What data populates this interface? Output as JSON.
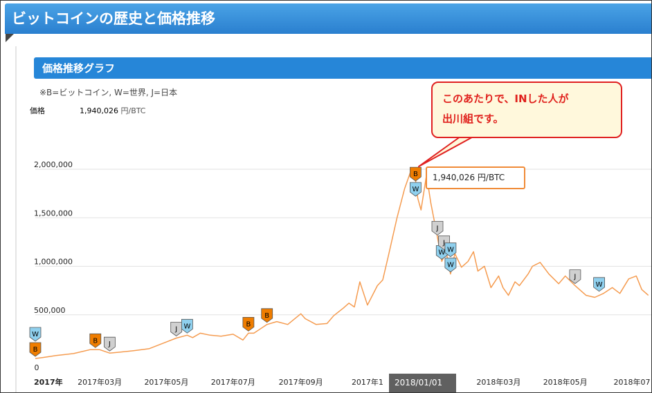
{
  "page": {
    "title": "ビットコインの歴史と価格推移",
    "section_title": "価格推移グラフ",
    "legend_note": "※B=ビットコイン, W=世界, J=日本",
    "price_label": "価格",
    "price_value": "1,940,026",
    "price_unit": "円/BTC"
  },
  "callout": {
    "line1": "このあたりで、INした人が",
    "line2": "出川組です。"
  },
  "tooltip": {
    "value": "1,940,026",
    "unit": "円/BTC"
  },
  "highlight": {
    "label": "2018/01/01"
  },
  "colors": {
    "banner": "#3a93dc",
    "section": "#2686d8",
    "line": "#f59b4f",
    "marker_b": "#ef7d00",
    "marker_w": "#8fd0ee",
    "marker_j": "#d0d0d0",
    "callout_border": "#e02020",
    "callout_fill": "#fff8dc",
    "callout_text": "#e0201c"
  },
  "chart_data": {
    "type": "line",
    "ylim": [
      0,
      2300000
    ],
    "yticks": [
      0,
      500000,
      1000000,
      1500000,
      2000000
    ],
    "ytick_labels": [
      "0",
      "500,000",
      "1,000,000",
      "1,500,000",
      "2,000,000"
    ],
    "xticks": [
      {
        "date": "2017-01-01",
        "label": "2017年"
      },
      {
        "date": "2017-03-01",
        "label": "2017年03月"
      },
      {
        "date": "2017-05-01",
        "label": "2017年05月"
      },
      {
        "date": "2017-07-01",
        "label": "2017年07月"
      },
      {
        "date": "2017-09-01",
        "label": "2017年09月"
      },
      {
        "date": "2017-11-01",
        "label": "2017年1"
      },
      {
        "date": "2018-03-01",
        "label": "2018年03月"
      },
      {
        "date": "2018-05-01",
        "label": "2018年05月"
      },
      {
        "date": "2018-07-01",
        "label": "2018年07"
      }
    ],
    "series": [
      {
        "x": [
          "2017-01-01",
          "2017-01-08",
          "2017-01-20",
          "2017-02-05",
          "2017-02-20",
          "2017-03-01",
          "2017-03-10",
          "2017-03-20",
          "2017-04-01",
          "2017-04-15",
          "2017-05-01",
          "2017-05-10",
          "2017-05-20",
          "2017-05-25",
          "2017-06-01",
          "2017-06-10",
          "2017-06-20",
          "2017-07-01",
          "2017-07-10",
          "2017-07-15",
          "2017-07-20",
          "2017-08-01",
          "2017-08-10",
          "2017-08-20",
          "2017-09-01",
          "2017-09-05",
          "2017-09-15",
          "2017-09-25",
          "2017-10-01",
          "2017-10-10",
          "2017-10-15",
          "2017-10-20",
          "2017-10-25",
          "2017-11-01",
          "2017-11-10",
          "2017-11-15",
          "2017-11-20",
          "2017-11-28",
          "2017-12-05",
          "2017-12-10",
          "2017-12-14",
          "2017-12-17",
          "2017-12-20",
          "2017-12-25",
          "2017-12-29",
          "2018-01-04",
          "2018-01-08",
          "2018-01-12",
          "2018-01-16",
          "2018-01-20",
          "2018-01-26",
          "2018-02-01",
          "2018-02-06",
          "2018-02-10",
          "2018-02-16",
          "2018-02-22",
          "2018-03-01",
          "2018-03-05",
          "2018-03-10",
          "2018-03-16",
          "2018-03-20",
          "2018-03-28",
          "2018-04-01",
          "2018-04-08",
          "2018-04-16",
          "2018-04-25",
          "2018-05-01",
          "2018-05-10",
          "2018-05-20",
          "2018-05-28",
          "2018-06-05",
          "2018-06-13",
          "2018-06-20",
          "2018-06-28",
          "2018-07-05",
          "2018-07-10",
          "2018-07-16"
        ],
        "values": [
          50000,
          60000,
          80000,
          100000,
          140000,
          140000,
          105000,
          115000,
          130000,
          150000,
          220000,
          260000,
          290000,
          265000,
          310000,
          290000,
          280000,
          300000,
          240000,
          310000,
          310000,
          400000,
          430000,
          400000,
          510000,
          460000,
          400000,
          410000,
          490000,
          570000,
          620000,
          580000,
          840000,
          600000,
          800000,
          860000,
          1100000,
          1500000,
          1800000,
          1960000,
          1980000,
          1700000,
          1580000,
          1940000,
          1650000,
          1300000,
          1050000,
          1150000,
          920000,
          1130000,
          990000,
          1050000,
          1150000,
          950000,
          1000000,
          780000,
          900000,
          780000,
          700000,
          840000,
          800000,
          920000,
          1000000,
          1040000,
          920000,
          820000,
          900000,
          800000,
          700000,
          680000,
          720000,
          780000,
          720000,
          870000,
          900000,
          760000,
          700000
        ]
      }
    ],
    "markers": [
      {
        "date": "2017-01-01",
        "label": "B",
        "kind": "B"
      },
      {
        "date": "2017-01-01",
        "label": "W",
        "kind": "W"
      },
      {
        "date": "2017-02-25",
        "label": "B",
        "kind": "B"
      },
      {
        "date": "2017-03-10",
        "label": "J",
        "kind": "J"
      },
      {
        "date": "2017-05-10",
        "label": "J",
        "kind": "J"
      },
      {
        "date": "2017-05-20",
        "label": "W",
        "kind": "W"
      },
      {
        "date": "2017-07-15",
        "label": "B",
        "kind": "B"
      },
      {
        "date": "2017-08-01",
        "label": "B",
        "kind": "B"
      },
      {
        "date": "2017-12-15",
        "label": "W",
        "kind": "W"
      },
      {
        "date": "2017-12-15",
        "label": "B",
        "kind": "B"
      },
      {
        "date": "2018-01-04",
        "label": "J",
        "kind": "J"
      },
      {
        "date": "2018-01-08",
        "label": "W",
        "kind": "W"
      },
      {
        "date": "2018-01-10",
        "label": "J",
        "kind": "J"
      },
      {
        "date": "2018-01-16",
        "label": "W",
        "kind": "W"
      },
      {
        "date": "2018-01-16",
        "label": "W",
        "kind": "W"
      },
      {
        "date": "2018-05-10",
        "label": "J",
        "kind": "J"
      },
      {
        "date": "2018-06-01",
        "label": "W",
        "kind": "W"
      }
    ]
  }
}
